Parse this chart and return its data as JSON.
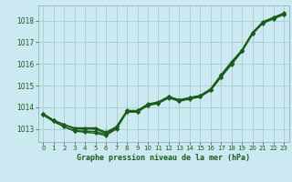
{
  "title": "Graphe pression niveau de la mer (hPa)",
  "bg_color": "#cce8f0",
  "grid_color": "#aacccc",
  "line_color": "#1a5c1a",
  "marker_color": "#1a5c1a",
  "xlim": [
    -0.5,
    23.5
  ],
  "ylim": [
    1012.4,
    1018.7
  ],
  "yticks": [
    1013,
    1014,
    1015,
    1016,
    1017,
    1018
  ],
  "xticks": [
    0,
    1,
    2,
    3,
    4,
    5,
    6,
    7,
    8,
    9,
    10,
    11,
    12,
    13,
    14,
    15,
    16,
    17,
    18,
    19,
    20,
    21,
    22,
    23
  ],
  "series": [
    {
      "y": [
        1013.7,
        1013.4,
        1013.2,
        1013.0,
        1013.0,
        1013.0,
        1012.8,
        1013.1,
        1013.8,
        1013.8,
        1014.1,
        1014.2,
        1014.5,
        1014.3,
        1014.4,
        1014.5,
        1014.8,
        1015.4,
        1016.0,
        1016.6,
        1017.4,
        1017.9,
        1018.1,
        1018.3
      ],
      "marker": true,
      "lw": 1.0
    },
    {
      "y": [
        1013.7,
        1013.4,
        1013.2,
        1013.05,
        1013.05,
        1013.05,
        1012.85,
        1013.1,
        1013.85,
        1013.85,
        1014.15,
        1014.25,
        1014.5,
        1014.35,
        1014.45,
        1014.55,
        1014.85,
        1015.5,
        1016.1,
        1016.65,
        1017.45,
        1017.95,
        1018.15,
        1018.35
      ],
      "marker": true,
      "lw": 1.0
    },
    {
      "y": [
        1013.65,
        1013.35,
        1013.1,
        1012.92,
        1012.9,
        1012.88,
        1012.75,
        1013.05,
        1013.82,
        1013.82,
        1014.12,
        1014.22,
        1014.47,
        1014.32,
        1014.42,
        1014.52,
        1014.82,
        1015.45,
        1016.05,
        1016.62,
        1017.42,
        1017.92,
        1018.12,
        1018.32
      ],
      "marker": true,
      "lw": 1.0
    },
    {
      "y": [
        1013.65,
        1013.35,
        1013.1,
        1012.9,
        1012.85,
        1012.8,
        1012.7,
        1013.0,
        1013.78,
        1013.78,
        1014.08,
        1014.18,
        1014.43,
        1014.28,
        1014.38,
        1014.48,
        1014.78,
        1015.4,
        1015.98,
        1016.58,
        1017.38,
        1017.88,
        1018.08,
        1018.28
      ],
      "marker": true,
      "lw": 1.0
    }
  ]
}
